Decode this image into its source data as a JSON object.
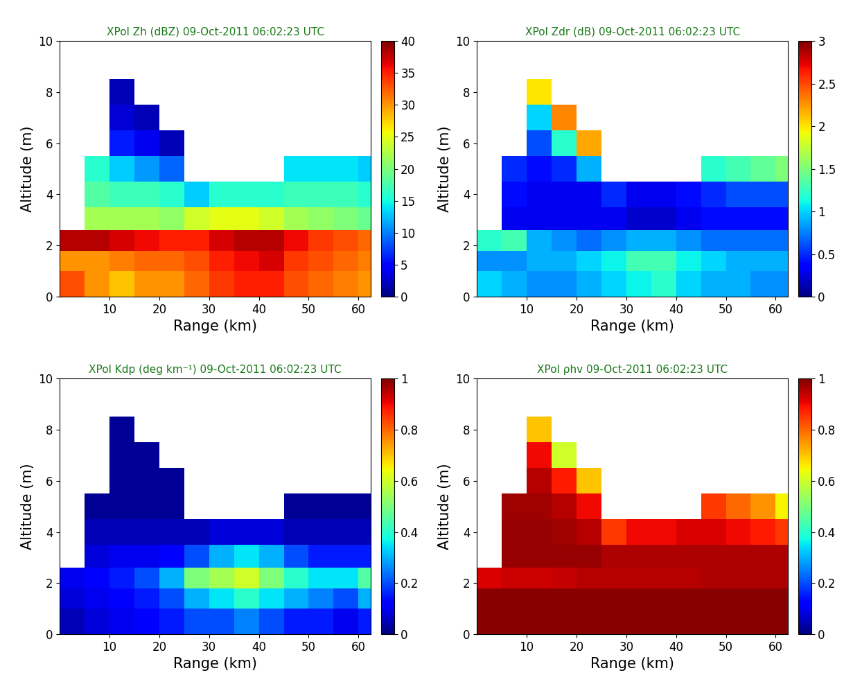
{
  "chart_data": [
    {
      "type": "heatmap",
      "title": "XPol Zh (dBZ) 09-Oct-2011 06:02:23 UTC",
      "x_label": "Range (km)",
      "y_label": "Altitude (m)",
      "xlim": [
        0,
        62.5
      ],
      "xticks": [
        10,
        20,
        30,
        40,
        50,
        60
      ],
      "ylim": [
        0,
        10
      ],
      "yticks": [
        0,
        2,
        4,
        6,
        8,
        10
      ],
      "x_edges": [
        0,
        5,
        10,
        15,
        20,
        25,
        30,
        35,
        40,
        45,
        50,
        55,
        60,
        62.5
      ],
      "y_edges": [
        0,
        1,
        1.8,
        2.6,
        3.5,
        4.5,
        5.5,
        6.5,
        7.5,
        8.5
      ],
      "cells": [
        [
          33,
          30,
          28,
          30,
          30,
          32,
          34,
          35,
          35,
          33,
          32,
          31,
          30
        ],
        [
          30,
          30,
          31,
          32,
          32,
          33,
          35,
          36,
          37,
          34,
          33,
          32,
          31
        ],
        [
          38,
          38,
          37,
          36,
          35,
          35,
          37,
          38,
          38,
          36,
          34,
          33,
          32
        ],
        [
          null,
          22,
          22,
          22,
          21,
          24,
          25,
          25,
          24,
          22,
          21,
          20,
          19
        ],
        [
          null,
          18,
          17,
          17,
          16,
          13,
          16,
          16,
          16,
          17,
          17,
          17,
          16
        ],
        [
          null,
          16,
          13,
          11,
          9,
          null,
          null,
          null,
          null,
          14,
          14,
          14,
          13
        ],
        [
          null,
          null,
          6,
          4,
          2,
          null,
          null,
          null,
          null,
          null,
          null,
          null,
          null
        ],
        [
          null,
          null,
          3,
          2,
          null,
          null,
          null,
          null,
          null,
          null,
          null,
          null,
          null
        ],
        [
          null,
          null,
          2,
          null,
          null,
          null,
          null,
          null,
          null,
          null,
          null,
          null,
          null
        ]
      ],
      "colorbar_range": [
        0,
        40
      ],
      "colorbar_ticks": [
        0,
        5,
        10,
        15,
        20,
        25,
        30,
        35,
        40
      ]
    },
    {
      "type": "heatmap",
      "title": "XPol Zdr (dB) 09-Oct-2011 06:02:23 UTC",
      "x_label": "Range (km)",
      "y_label": "Altitude (m)",
      "xlim": [
        0,
        62.5
      ],
      "xticks": [
        10,
        20,
        30,
        40,
        50,
        60
      ],
      "ylim": [
        0,
        10
      ],
      "yticks": [
        0,
        2,
        4,
        6,
        8,
        10
      ],
      "x_edges": [
        0,
        5,
        10,
        15,
        20,
        25,
        30,
        35,
        40,
        45,
        50,
        55,
        60,
        62.5
      ],
      "y_edges": [
        0,
        1,
        1.8,
        2.6,
        3.5,
        4.5,
        5.5,
        6.5,
        7.5,
        8.5
      ],
      "cells": [
        [
          1.0,
          0.9,
          0.8,
          0.8,
          0.9,
          1.0,
          1.1,
          1.2,
          1.0,
          0.9,
          0.9,
          0.8,
          0.8
        ],
        [
          0.8,
          0.8,
          0.9,
          0.9,
          1.0,
          1.1,
          1.3,
          1.3,
          1.1,
          1.0,
          0.9,
          0.9,
          0.9
        ],
        [
          1.2,
          1.3,
          0.9,
          0.8,
          0.7,
          0.8,
          0.9,
          0.9,
          0.8,
          0.7,
          0.7,
          0.7,
          0.7
        ],
        [
          null,
          0.3,
          0.3,
          0.3,
          0.3,
          0.3,
          0.2,
          0.2,
          0.3,
          0.4,
          0.4,
          0.4,
          0.4
        ],
        [
          null,
          0.4,
          0.3,
          0.3,
          0.3,
          0.5,
          0.3,
          0.3,
          0.4,
          0.5,
          0.6,
          0.6,
          0.6
        ],
        [
          null,
          0.5,
          0.4,
          0.5,
          0.9,
          null,
          null,
          null,
          null,
          1.2,
          1.3,
          1.4,
          1.5
        ],
        [
          null,
          null,
          0.6,
          1.2,
          2.2,
          null,
          null,
          null,
          null,
          null,
          null,
          null,
          null
        ],
        [
          null,
          null,
          1.0,
          2.3,
          null,
          null,
          null,
          null,
          null,
          null,
          null,
          null,
          null
        ],
        [
          null,
          null,
          2.0,
          null,
          null,
          null,
          null,
          null,
          null,
          null,
          null,
          null,
          null
        ]
      ],
      "colorbar_range": [
        0,
        3
      ],
      "colorbar_ticks": [
        0,
        0.5,
        1,
        1.5,
        2,
        2.5,
        3
      ]
    },
    {
      "type": "heatmap",
      "title": "XPol Kdp (deg km⁻¹) 09-Oct-2011 06:02:23 UTC",
      "x_label": "Range (km)",
      "y_label": "Altitude (m)",
      "xlim": [
        0,
        62.5
      ],
      "xticks": [
        10,
        20,
        30,
        40,
        50,
        60
      ],
      "ylim": [
        0,
        10
      ],
      "yticks": [
        0,
        2,
        4,
        6,
        8,
        10
      ],
      "x_edges": [
        0,
        5,
        10,
        15,
        20,
        25,
        30,
        35,
        40,
        45,
        50,
        55,
        60,
        62.5
      ],
      "y_edges": [
        0,
        1,
        1.8,
        2.6,
        3.5,
        4.5,
        5.5,
        6.5,
        7.5,
        8.5
      ],
      "cells": [
        [
          0.05,
          0.08,
          0.1,
          0.12,
          0.15,
          0.2,
          0.2,
          0.25,
          0.2,
          0.15,
          0.15,
          0.1,
          0.15
        ],
        [
          0.08,
          0.1,
          0.12,
          0.15,
          0.2,
          0.3,
          0.35,
          0.4,
          0.35,
          0.3,
          0.25,
          0.2,
          0.3
        ],
        [
          0.1,
          0.12,
          0.15,
          0.2,
          0.3,
          0.5,
          0.55,
          0.6,
          0.5,
          0.4,
          0.35,
          0.35,
          0.45
        ],
        [
          null,
          0.08,
          0.1,
          0.1,
          0.12,
          0.2,
          0.3,
          0.35,
          0.3,
          0.2,
          0.15,
          0.15,
          0.15
        ],
        [
          null,
          0.05,
          0.05,
          0.05,
          0.05,
          0.05,
          0.08,
          0.08,
          0.08,
          0.05,
          0.05,
          0.05,
          0.05
        ],
        [
          null,
          0.02,
          0.02,
          0.02,
          0.02,
          null,
          null,
          null,
          null,
          0.02,
          0.02,
          0.02,
          0.02
        ],
        [
          null,
          null,
          0.02,
          0.02,
          0.02,
          null,
          null,
          null,
          null,
          null,
          null,
          null,
          null
        ],
        [
          null,
          null,
          0.02,
          0.02,
          null,
          null,
          null,
          null,
          null,
          null,
          null,
          null,
          null
        ],
        [
          null,
          null,
          0.02,
          null,
          null,
          null,
          null,
          null,
          null,
          null,
          null,
          null,
          null
        ]
      ],
      "colorbar_range": [
        0,
        1
      ],
      "colorbar_ticks": [
        0,
        0.2,
        0.4,
        0.6,
        0.8,
        1
      ]
    },
    {
      "type": "heatmap",
      "title": "XPol ρhv 09-Oct-2011 06:02:23 UTC",
      "x_label": "Range (km)",
      "y_label": "Altitude (m)",
      "xlim": [
        0,
        62.5
      ],
      "xticks": [
        10,
        20,
        30,
        40,
        50,
        60
      ],
      "ylim": [
        0,
        10
      ],
      "yticks": [
        0,
        2,
        4,
        6,
        8,
        10
      ],
      "x_edges": [
        0,
        5,
        10,
        15,
        20,
        25,
        30,
        35,
        40,
        45,
        50,
        55,
        60,
        62.5
      ],
      "y_edges": [
        0,
        1,
        1.8,
        2.6,
        3.5,
        4.5,
        5.5,
        6.5,
        7.5,
        8.5
      ],
      "cells": [
        [
          0.99,
          0.99,
          0.99,
          0.99,
          0.99,
          0.99,
          0.99,
          0.99,
          0.99,
          0.99,
          0.99,
          0.99,
          0.99
        ],
        [
          0.99,
          0.99,
          0.99,
          0.99,
          0.99,
          0.99,
          0.99,
          0.99,
          0.99,
          0.99,
          0.99,
          0.99,
          0.99
        ],
        [
          0.92,
          0.93,
          0.93,
          0.94,
          0.95,
          0.95,
          0.95,
          0.95,
          0.95,
          0.96,
          0.96,
          0.96,
          0.96
        ],
        [
          null,
          0.98,
          0.98,
          0.98,
          0.98,
          0.96,
          0.96,
          0.96,
          0.96,
          0.96,
          0.96,
          0.96,
          0.96
        ],
        [
          null,
          0.98,
          0.98,
          0.97,
          0.95,
          0.85,
          0.9,
          0.9,
          0.92,
          0.92,
          0.9,
          0.88,
          0.85
        ],
        [
          null,
          0.97,
          0.97,
          0.95,
          0.9,
          null,
          null,
          null,
          null,
          0.85,
          0.8,
          0.75,
          0.65
        ],
        [
          null,
          null,
          0.95,
          0.88,
          0.7,
          null,
          null,
          null,
          null,
          null,
          null,
          null,
          null
        ],
        [
          null,
          null,
          0.9,
          0.6,
          null,
          null,
          null,
          null,
          null,
          null,
          null,
          null,
          null
        ],
        [
          null,
          null,
          0.7,
          null,
          null,
          null,
          null,
          null,
          null,
          null,
          null,
          null,
          null
        ]
      ],
      "colorbar_range": [
        0,
        1
      ],
      "colorbar_ticks": [
        0,
        0.2,
        0.4,
        0.6,
        0.8,
        1
      ]
    }
  ]
}
